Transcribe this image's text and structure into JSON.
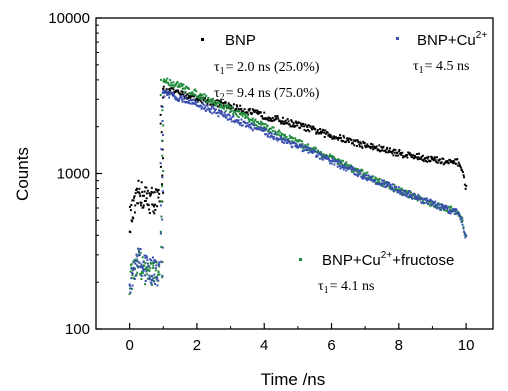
{
  "chart_data": {
    "type": "scatter",
    "title": "",
    "xlabel": "Time /ns",
    "ylabel": "Counts",
    "xlim": [
      -1,
      10.8
    ],
    "ylim": [
      100,
      10000
    ],
    "y_scale": "log",
    "x_ticks": [
      0,
      2,
      4,
      6,
      8,
      10
    ],
    "x_tick_labels": [
      "0",
      "2",
      "4",
      "6",
      "8",
      "10"
    ],
    "y_ticks": [
      100,
      1000,
      10000
    ],
    "y_tick_labels": [
      "100",
      "1000",
      "10000"
    ],
    "grid": false,
    "series": [
      {
        "name": "BNP",
        "color": "#000000",
        "pre_pulse": [
          [
            0.0,
            500
          ],
          [
            0.1,
            560
          ],
          [
            0.2,
            650
          ],
          [
            0.3,
            780
          ],
          [
            0.4,
            700
          ],
          [
            0.6,
            680
          ],
          [
            0.8,
            670
          ],
          [
            0.9,
            660
          ]
        ],
        "decay": [
          [
            1.0,
            3500
          ],
          [
            1.5,
            3250
          ],
          [
            2,
            3050
          ],
          [
            3,
            2700
          ],
          [
            4,
            2350
          ],
          [
            5,
            2050
          ],
          [
            6,
            1750
          ],
          [
            7,
            1520
          ],
          [
            8,
            1350
          ],
          [
            9,
            1230
          ],
          [
            9.5,
            1170
          ],
          [
            9.8,
            1180
          ],
          [
            9.9,
            1000
          ],
          [
            10.0,
            800
          ]
        ],
        "legend_lines": [
          "τ1 = 2.0 ns (25.0%)",
          "τ2 = 9.4 ns  (75.0%)"
        ]
      },
      {
        "name": "BNP+Cu2+",
        "color": "#3a4fb0",
        "pre_pulse": [
          [
            0.0,
            180
          ],
          [
            0.1,
            220
          ],
          [
            0.2,
            260
          ],
          [
            0.3,
            290
          ],
          [
            0.4,
            250
          ],
          [
            0.6,
            240
          ],
          [
            0.8,
            230
          ],
          [
            0.9,
            220
          ]
        ],
        "decay": [
          [
            1.0,
            3300
          ],
          [
            1.5,
            3050
          ],
          [
            2,
            2800
          ],
          [
            3,
            2280
          ],
          [
            4,
            1850
          ],
          [
            5,
            1500
          ],
          [
            6,
            1200
          ],
          [
            7,
            960
          ],
          [
            8,
            780
          ],
          [
            9,
            640
          ],
          [
            9.5,
            580
          ],
          [
            9.8,
            560
          ],
          [
            9.9,
            480
          ],
          [
            10.0,
            390
          ]
        ],
        "legend_lines": [
          "τ1 = 4.5 ns"
        ]
      },
      {
        "name": "BNP+Cu2++fructose",
        "color": "#1f8a3a",
        "pre_pulse": [
          [
            0.0,
            200
          ],
          [
            0.1,
            230
          ],
          [
            0.2,
            250
          ],
          [
            0.3,
            270
          ],
          [
            0.4,
            240
          ],
          [
            0.6,
            230
          ],
          [
            0.8,
            225
          ],
          [
            0.9,
            215
          ]
        ],
        "decay": [
          [
            1.0,
            4000
          ],
          [
            1.5,
            3650
          ],
          [
            2,
            3250
          ],
          [
            3,
            2560
          ],
          [
            4,
            2010
          ],
          [
            5,
            1580
          ],
          [
            6,
            1250
          ],
          [
            7,
            980
          ],
          [
            8,
            780
          ],
          [
            9,
            640
          ],
          [
            9.5,
            590
          ],
          [
            9.8,
            560
          ],
          [
            9.9,
            480
          ],
          [
            10.0,
            380
          ]
        ],
        "legend_lines": [
          "τ1 = 4.1 ns"
        ]
      }
    ],
    "legend": {
      "bnp": {
        "name": "BNP",
        "tau1_label": "τ",
        "tau1_sub": "1",
        "tau1_value": "= 2.0 ns (25.0%)",
        "tau2_label": "τ",
        "tau2_sub": "2",
        "tau2_value": "= 9.4 ns  (75.0%)"
      },
      "cu": {
        "name": "BNP+Cu",
        "name_sup": "2+",
        "tau1_label": "τ",
        "tau1_sub": "1",
        "tau1_value": "= 4.5 ns"
      },
      "fructose": {
        "name": "BNP+Cu",
        "name_sup": "2+",
        "name_suffix": "+fructose",
        "tau1_label": "τ",
        "tau1_sub": "1",
        "tau1_value": "= 4.1 ns"
      }
    }
  }
}
